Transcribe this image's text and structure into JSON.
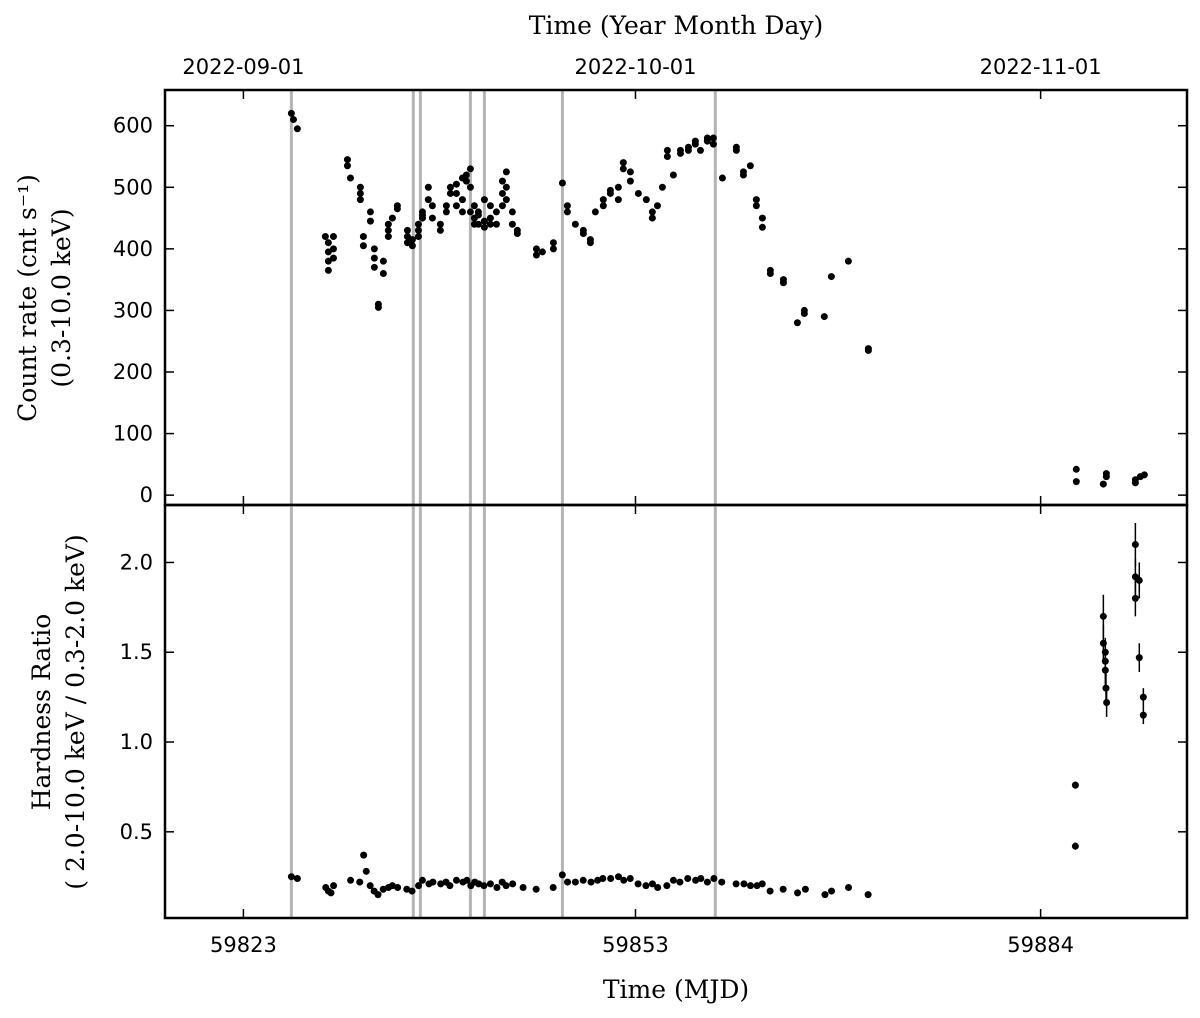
{
  "chart_data": [
    {
      "type": "scatter",
      "title": "Time (Year Month Day)",
      "ylabel": [
        "Count rate (cnt s⁻¹)",
        "(0.3-10.0 keV)"
      ],
      "color": "#000000",
      "vline_color": "#b4b4b4",
      "xlim": [
        59817,
        59895.2
      ],
      "ylim": [
        -16,
        658
      ],
      "yticks": [
        0,
        100,
        200,
        300,
        400,
        500,
        600
      ],
      "x2ticks": [
        {
          "value": 59823,
          "label": "2022-09-01"
        },
        {
          "value": 59853,
          "label": "2022-10-01"
        },
        {
          "value": 59884,
          "label": "2022-11-01"
        }
      ],
      "vlines": [
        59826.67,
        59836.0,
        59836.54,
        59840.37,
        59841.44,
        59847.41,
        59859.11
      ],
      "x": [
        59826.67,
        59826.83,
        59827.13,
        59829.27,
        59829.5,
        59829.5,
        59829.5,
        59829.5,
        59829.89,
        59829.89,
        59829.89,
        59830.96,
        59830.96,
        59831.19,
        59831.95,
        59831.95,
        59831.95,
        59832.18,
        59832.18,
        59832.72,
        59832.72,
        59833.02,
        59833.02,
        59833.02,
        59833.33,
        59833.33,
        59833.71,
        59833.71,
        59834.09,
        59834.09,
        59834.09,
        59834.4,
        59834.78,
        59834.78,
        59835.55,
        59835.55,
        59835.55,
        59835.93,
        59835.93,
        59836.39,
        59836.39,
        59836.39,
        59836.7,
        59836.7,
        59836.7,
        59837.15,
        59837.15,
        59837.46,
        59837.46,
        59838.07,
        59838.07,
        59838.53,
        59838.53,
        59838.84,
        59838.84,
        59839.3,
        59839.3,
        59839.3,
        59839.76,
        59839.76,
        59839.76,
        59840.06,
        59840.06,
        59840.37,
        59840.37,
        59840.37,
        59840.67,
        59840.67,
        59840.67,
        59840.98,
        59840.98,
        59840.98,
        59841.44,
        59841.44,
        59841.44,
        59841.9,
        59841.9,
        59841.9,
        59842.36,
        59842.36,
        59842.82,
        59842.82,
        59842.82,
        59843.12,
        59843.12,
        59843.12,
        59843.58,
        59843.58,
        59843.96,
        59843.96,
        59845.42,
        59845.42,
        59845.88,
        59846.72,
        59846.72,
        59847.41,
        59847.79,
        59847.79,
        59848.4,
        59849.01,
        59849.01,
        59849.55,
        59849.55,
        59849.93,
        59850.54,
        59850.54,
        59851.08,
        59851.08,
        59851.69,
        59851.69,
        59852.07,
        59852.07,
        59852.61,
        59852.61,
        59853.22,
        59853.83,
        59854.29,
        59854.29,
        59854.68,
        59855.06,
        59855.44,
        59855.44,
        59855.9,
        59856.44,
        59856.44,
        59857.05,
        59857.05,
        59857.58,
        59857.58,
        59857.97,
        59858.5,
        59858.5,
        59858.96,
        59858.96,
        59859.65,
        59860.72,
        59860.72,
        59861.26,
        59861.26,
        59861.79,
        59862.25,
        59862.25,
        59862.71,
        59862.71,
        59863.32,
        59863.32,
        59864.32,
        59864.32,
        59865.39,
        59865.92,
        59865.92,
        59867.45,
        59867.99,
        59869.29,
        59870.82,
        59870.82,
        59886.73,
        59886.73,
        59888.8,
        59889.03,
        59889.03,
        59891.25,
        59891.25,
        59891.63,
        59891.94
      ],
      "values": [
        620,
        610,
        595,
        420,
        365,
        380,
        395,
        410,
        400,
        420,
        385,
        545,
        535,
        515,
        500,
        490,
        480,
        420,
        405,
        460,
        445,
        400,
        385,
        370,
        310,
        305,
        380,
        360,
        440,
        430,
        420,
        450,
        465,
        470,
        420,
        430,
        410,
        405,
        415,
        430,
        420,
        440,
        455,
        450,
        460,
        480,
        500,
        470,
        450,
        440,
        430,
        460,
        470,
        490,
        500,
        505,
        490,
        470,
        515,
        480,
        460,
        520,
        510,
        530,
        500,
        460,
        470,
        450,
        440,
        455,
        440,
        460,
        480,
        445,
        435,
        470,
        450,
        440,
        460,
        440,
        490,
        470,
        510,
        525,
        500,
        480,
        460,
        440,
        430,
        425,
        400,
        390,
        395,
        410,
        400,
        507,
        470,
        460,
        440,
        430,
        425,
        415,
        410,
        460,
        470,
        480,
        490,
        495,
        500,
        480,
        540,
        530,
        525,
        510,
        490,
        480,
        460,
        450,
        470,
        500,
        560,
        550,
        520,
        555,
        560,
        565,
        560,
        570,
        575,
        560,
        580,
        575,
        580,
        570,
        515,
        565,
        560,
        525,
        520,
        535,
        480,
        470,
        450,
        435,
        365,
        360,
        350,
        345,
        280,
        300,
        295,
        290,
        355,
        380,
        235,
        238,
        42,
        22,
        18,
        35,
        30,
        25,
        20,
        30,
        33
      ]
    },
    {
      "type": "errorbar",
      "xlabel": "Time (MJD)",
      "ylabel": [
        "Hardness Ratio",
        "( 2.0-10.0 keV / 0.3-2.0 keV)"
      ],
      "color": "#000000",
      "vline_color": "#b4b4b4",
      "xlim": [
        59817,
        59895.2
      ],
      "ylim": [
        0.02,
        2.32
      ],
      "xticks": [
        59823,
        59853,
        59884
      ],
      "yticks": [
        0.5,
        {
          "value": 1.0,
          "label": "1.0"
        },
        1.5,
        {
          "value": 2.0,
          "label": "2.0"
        }
      ],
      "vlines": [
        59826.67,
        59836.0,
        59836.54,
        59840.37,
        59841.44,
        59847.41,
        59859.11
      ],
      "x": [
        59826.67,
        59827.13,
        59829.3,
        59829.5,
        59829.7,
        59829.9,
        59831.2,
        59831.9,
        59832.2,
        59832.4,
        59832.7,
        59833.0,
        59833.3,
        59833.7,
        59834.1,
        59834.4,
        59834.8,
        59835.5,
        59835.9,
        59836.4,
        59836.7,
        59837.2,
        59837.5,
        59838.1,
        59838.5,
        59838.8,
        59839.3,
        59839.8,
        59840.1,
        59840.4,
        59840.7,
        59841.0,
        59841.4,
        59841.9,
        59842.4,
        59842.8,
        59843.1,
        59843.6,
        59844.4,
        59845.4,
        59846.7,
        59847.4,
        59847.8,
        59848.4,
        59849.0,
        59849.6,
        59850.1,
        59850.5,
        59851.1,
        59851.7,
        59852.1,
        59852.6,
        59853.2,
        59853.8,
        59854.3,
        59854.7,
        59855.4,
        59855.9,
        59856.4,
        59857.0,
        59857.6,
        59858.0,
        59858.5,
        59859.0,
        59859.6,
        59860.7,
        59861.3,
        59861.8,
        59862.3,
        59862.7,
        59863.3,
        59864.3,
        59865.4,
        59866.0,
        59867.5,
        59868.0,
        59869.3,
        59870.8,
        59886.66,
        59886.66,
        59888.8,
        59888.8,
        59888.95,
        59888.95,
        59888.95,
        59889.0,
        59889.05,
        59891.25,
        59891.25,
        59891.25,
        59891.55,
        59891.55,
        59891.86,
        59891.86
      ],
      "values": [
        0.25,
        0.24,
        0.19,
        0.17,
        0.16,
        0.2,
        0.23,
        0.22,
        0.37,
        0.28,
        0.2,
        0.17,
        0.15,
        0.18,
        0.19,
        0.2,
        0.19,
        0.18,
        0.17,
        0.2,
        0.23,
        0.21,
        0.22,
        0.21,
        0.22,
        0.2,
        0.23,
        0.22,
        0.23,
        0.2,
        0.22,
        0.21,
        0.2,
        0.21,
        0.19,
        0.22,
        0.2,
        0.21,
        0.19,
        0.18,
        0.19,
        0.26,
        0.22,
        0.22,
        0.23,
        0.22,
        0.23,
        0.24,
        0.24,
        0.25,
        0.23,
        0.24,
        0.21,
        0.2,
        0.21,
        0.19,
        0.2,
        0.23,
        0.22,
        0.24,
        0.23,
        0.24,
        0.22,
        0.24,
        0.22,
        0.21,
        0.21,
        0.2,
        0.2,
        0.21,
        0.17,
        0.18,
        0.16,
        0.18,
        0.15,
        0.17,
        0.19,
        0.15,
        0.76,
        0.42,
        1.7,
        1.55,
        1.5,
        1.45,
        1.4,
        1.3,
        1.22,
        2.1,
        1.92,
        1.8,
        1.9,
        1.47,
        1.25,
        1.15
      ],
      "errors": [
        0.01,
        0.01,
        0.01,
        0.01,
        0.01,
        0.01,
        0.01,
        0.01,
        0.01,
        0.01,
        0.01,
        0.01,
        0.01,
        0.01,
        0.01,
        0.01,
        0.01,
        0.01,
        0.01,
        0.01,
        0.01,
        0.01,
        0.01,
        0.01,
        0.01,
        0.01,
        0.01,
        0.01,
        0.01,
        0.01,
        0.01,
        0.01,
        0.01,
        0.01,
        0.01,
        0.01,
        0.01,
        0.01,
        0.01,
        0.01,
        0.01,
        0.01,
        0.01,
        0.01,
        0.01,
        0.01,
        0.01,
        0.01,
        0.01,
        0.01,
        0.01,
        0.01,
        0.01,
        0.01,
        0.01,
        0.01,
        0.01,
        0.01,
        0.01,
        0.01,
        0.01,
        0.01,
        0.01,
        0.01,
        0.01,
        0.01,
        0.01,
        0.01,
        0.01,
        0.01,
        0.01,
        0.01,
        0.01,
        0.01,
        0.01,
        0.01,
        0.01,
        0.01,
        0.02,
        0.02,
        0.12,
        0.1,
        0.08,
        0.08,
        0.1,
        0.1,
        0.08,
        0.12,
        0.1,
        0.1,
        0.1,
        0.08,
        0.05,
        0.05
      ]
    }
  ]
}
